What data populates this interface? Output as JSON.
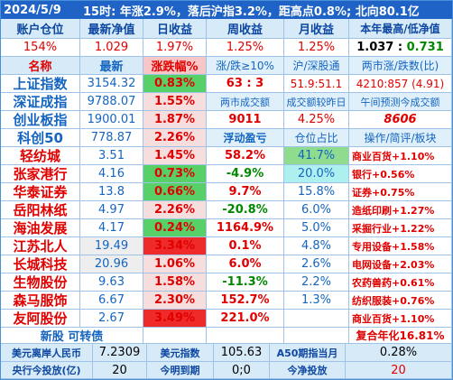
{
  "header": {
    "date": "2024/5/9",
    "summary": "15时: 年涨2.9%，落后沪指3.2%，距高点0.8%; 北向80.1亿"
  },
  "account": {
    "labels": [
      "账户仓位",
      "最新净值",
      "日收益",
      "周收益",
      "月收益",
      "本年最高/低净值"
    ],
    "values": [
      "154%",
      "1.029",
      "1.97%",
      "1.25%",
      "1.25%",
      "1.037",
      "0.731"
    ]
  },
  "index_header": [
    "名称",
    "最新",
    "涨跌幅%",
    "涨/跌≥10%",
    "沪/深股通",
    "两市涨/跌数(比)"
  ],
  "indices": [
    {
      "name": "上证指数",
      "price": "3154.32",
      "change": "0.83%",
      "col4": "63 : 3",
      "col5": "51.9:51.1",
      "col6": "4210:857 (4.91)"
    },
    {
      "name": "深证成指",
      "price": "9788.07",
      "change": "1.55%",
      "col4": "两市成交额",
      "col5": "成交额较昨日",
      "col6": "午间预测今成交额"
    },
    {
      "name": "创业板指",
      "price": "1900.01",
      "change": "1.87%",
      "col4": "",
      "col5": "9011",
      "col6": "4.25%",
      "col7": "8606"
    }
  ],
  "kc50": {
    "name": "科创50",
    "price": "778.87",
    "change": "2.26%",
    "col4": "浮动盈亏",
    "col5": "仓位占比",
    "col6": "操作/简评/板块"
  },
  "stocks": [
    {
      "name": "轻纺城",
      "price": "3.51",
      "change": "1.45%",
      "pnl": "58.2%",
      "pos": "41.7%",
      "note": "商业百货+1.10%"
    },
    {
      "name": "张家港行",
      "price": "4.16",
      "change": "0.73%",
      "pnl": "-4.9%",
      "pos": "20.0%",
      "note": "银行+0.56%"
    },
    {
      "name": "华泰证券",
      "price": "13.8",
      "change": "0.66%",
      "pnl": "9.7%",
      "pos": "15.8%",
      "note": "证券+0.75%"
    },
    {
      "name": "岳阳林纸",
      "price": "4.97",
      "change": "2.26%",
      "pnl": "-20.8%",
      "pos": "6.0%",
      "note": "造纸印刷+1.27%"
    },
    {
      "name": "海油发展",
      "price": "4.17",
      "change": "0.24%",
      "pnl": "1164.9%",
      "pos": "5.0%",
      "note": "采掘行业+1.22%"
    },
    {
      "name": "江苏北人",
      "price": "19.49",
      "change": "3.34%",
      "pnl": "0.1%",
      "pos": "4.8%",
      "note": "专用设备+1.58%"
    },
    {
      "name": "长城科技",
      "price": "20.96",
      "change": "1.06%",
      "pnl": "6.0%",
      "pos": "2.6%",
      "note": "电网设备+2.03%"
    },
    {
      "name": "生物股份",
      "price": "9.63",
      "change": "1.58%",
      "pnl": "-11.3%",
      "pos": "2.2%",
      "note": "农药兽药+0.61%"
    },
    {
      "name": "森马服饰",
      "price": "6.67",
      "change": "2.30%",
      "pnl": "152.7%",
      "pos": "1.3%",
      "note": "纺织服装+0.76%"
    },
    {
      "name": "友阿股份",
      "price": "2.67",
      "change": "3.49%",
      "pnl": "221.0%",
      "pos": "",
      "note": "商业百货+1.10%"
    }
  ],
  "newstock": {
    "label": "新股 可转债",
    "note": "复合年化16.81%"
  },
  "footer1": {
    "l1": "美元离岸人民币",
    "v1": "7.2309",
    "l2": "美元指数",
    "v2": "105.63",
    "l3": "A50期指当月",
    "v3": "0.28%"
  },
  "footer2": {
    "l1": "央行今投放(亿)",
    "v1": "20",
    "l2": "今明到期",
    "v2": "0;0",
    "l3": "今净投放",
    "v3": "20"
  },
  "colors": {
    "red": "#e00000",
    "green": "#008800",
    "blue": "#1565c0",
    "header_bg": "#d6eaf8"
  }
}
